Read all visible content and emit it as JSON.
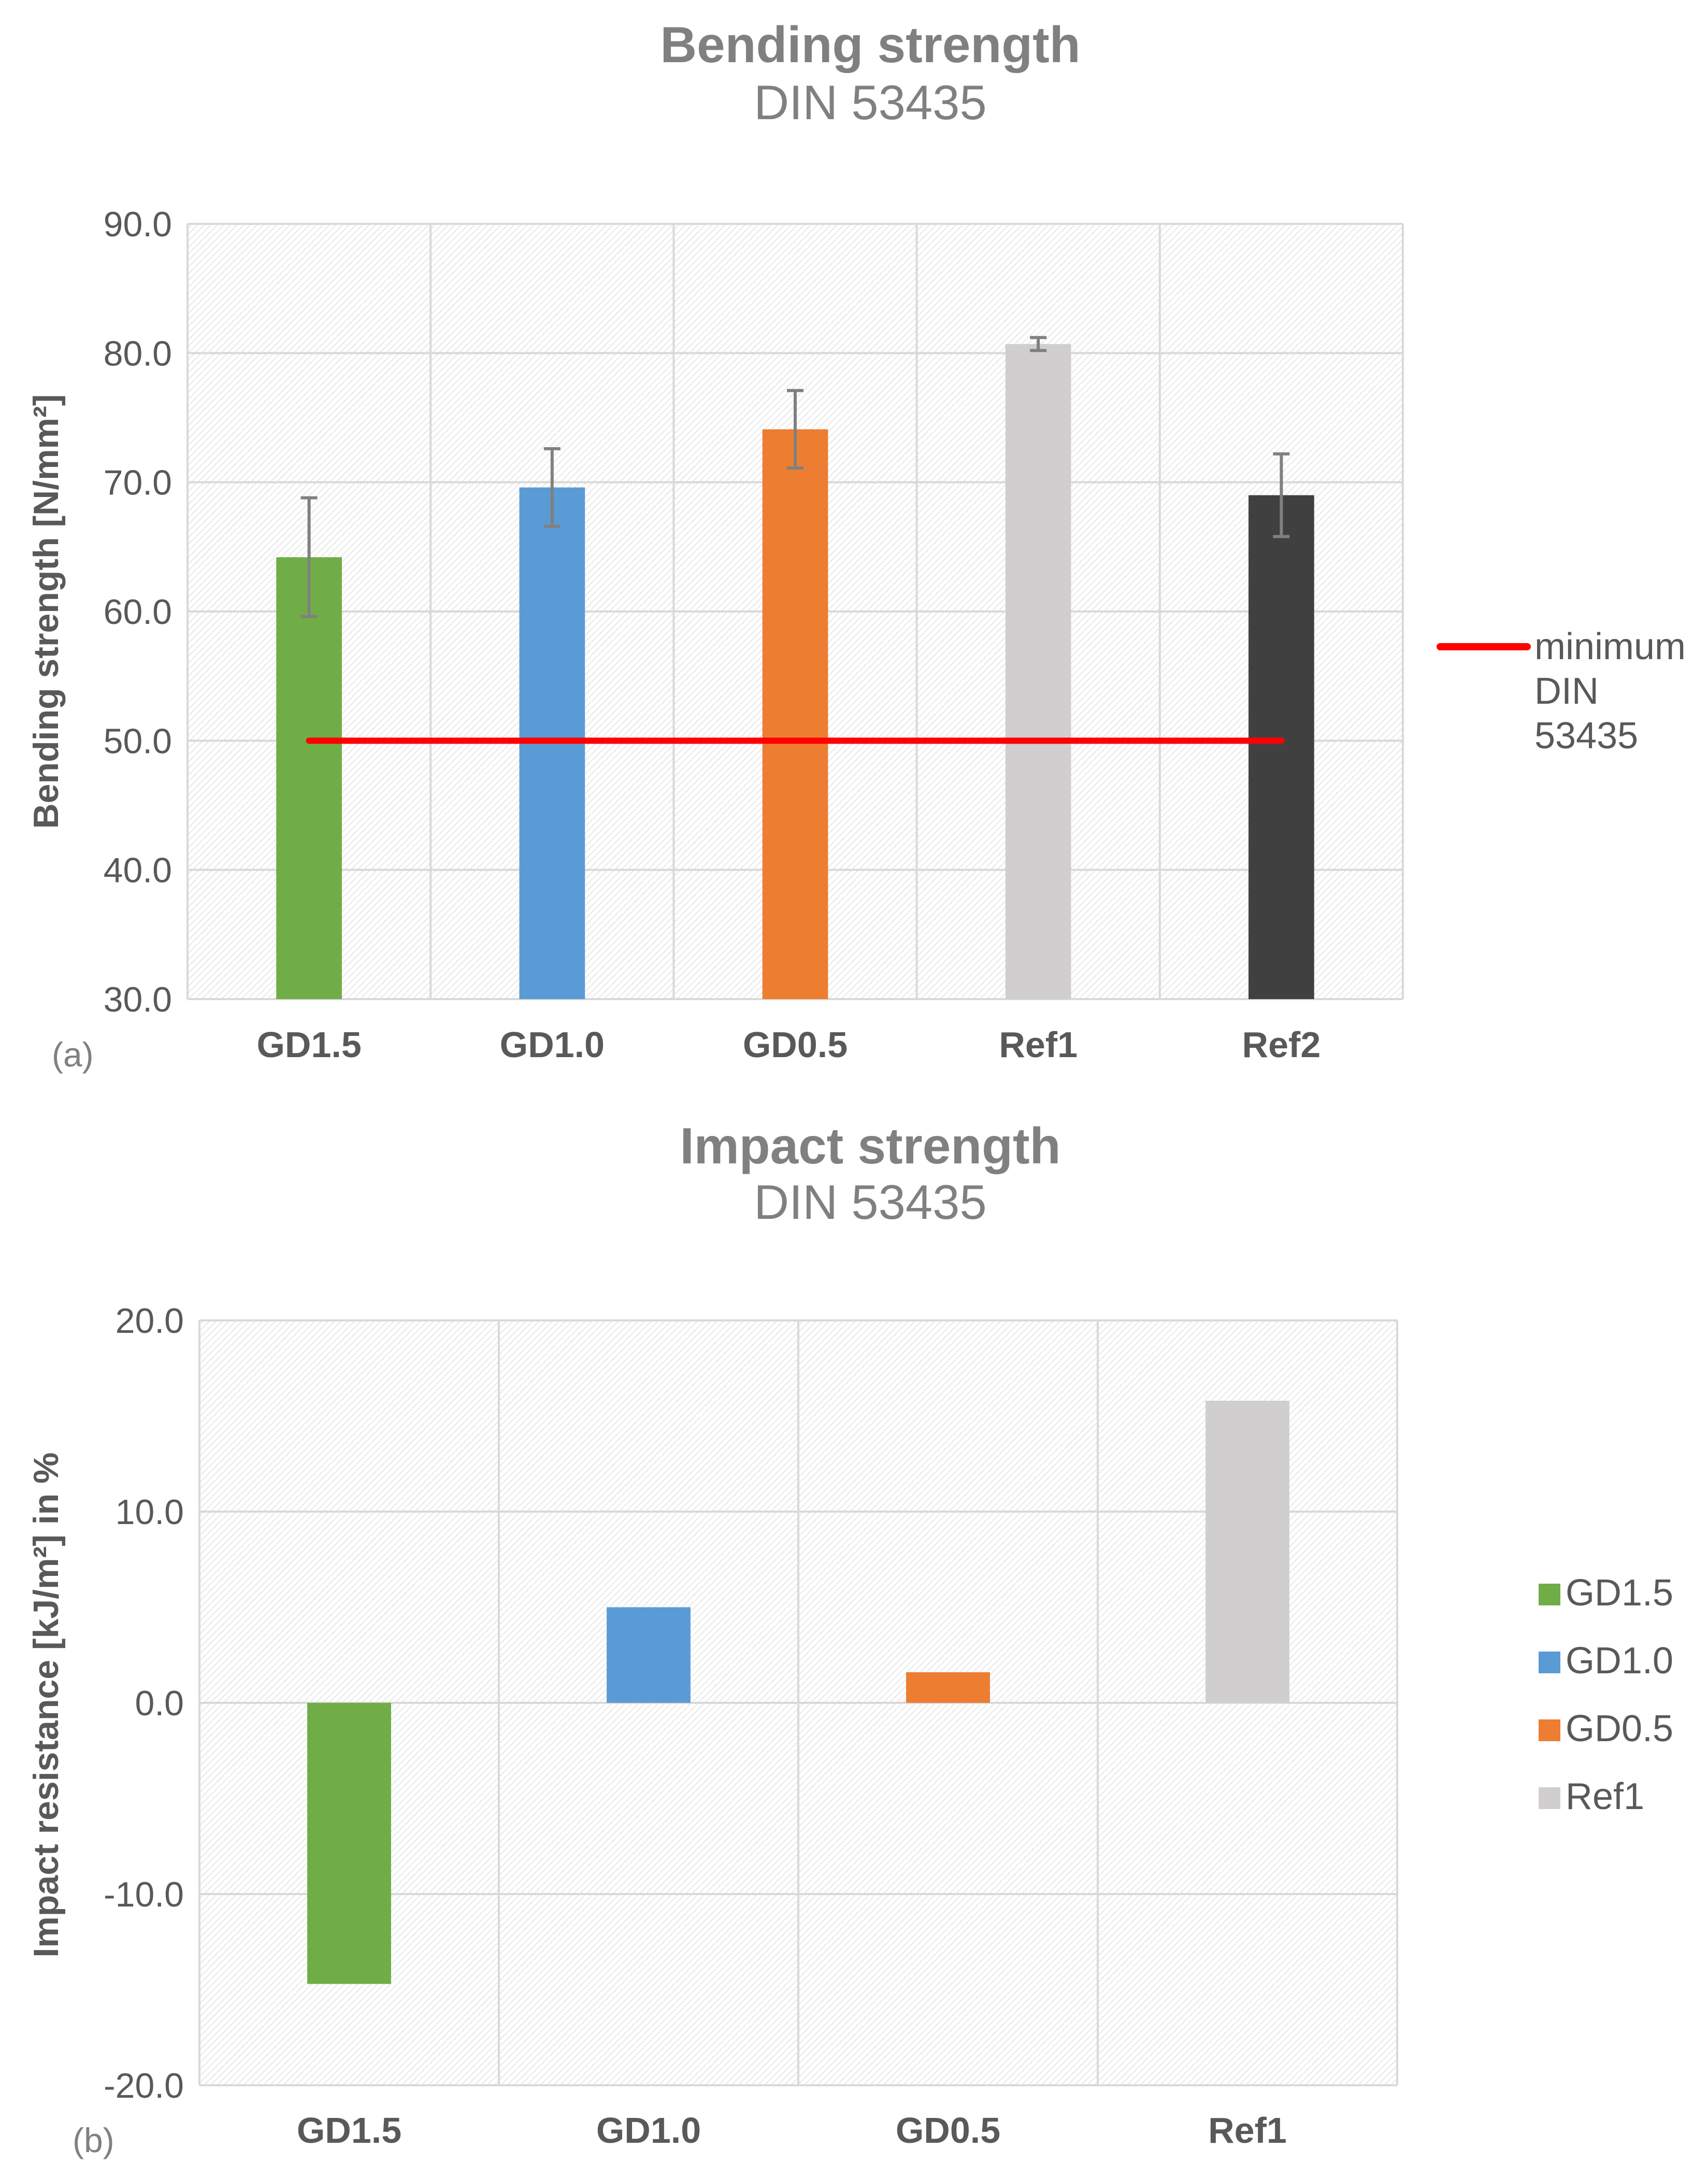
{
  "chart_data": [
    {
      "type": "bar",
      "panel_label": "(a)",
      "title": "Bending strength",
      "subtitle": "DIN 53435",
      "xlabel": "",
      "ylabel": "Bending strength [N/mm²]",
      "ylim": [
        30,
        90
      ],
      "yticks": [
        "30.0",
        "40.0",
        "50.0",
        "60.0",
        "70.0",
        "80.0",
        "90.0"
      ],
      "grid": true,
      "categories": [
        "GD1.5",
        "GD1.0",
        "GD0.5",
        "Ref1",
        "Ref2"
      ],
      "values": [
        64.2,
        69.6,
        74.1,
        80.7,
        69.0
      ],
      "errors": [
        4.6,
        3.0,
        3.0,
        0.5,
        3.2
      ],
      "colors": [
        "#70ad47",
        "#5b9bd5",
        "#ed7d31",
        "#d0cece",
        "#404040"
      ],
      "reference_line": {
        "value": 50.0,
        "label": "minimum DIN 53435",
        "label_lines": [
          "minimum",
          "DIN",
          "53435"
        ],
        "color": "#ff0000"
      },
      "legend_position": "right"
    },
    {
      "type": "bar",
      "panel_label": "(b)",
      "title": "Impact strength",
      "subtitle": "DIN 53435",
      "xlabel": "",
      "ylabel": "Impact resistance [kJ/m²] in %",
      "ylim": [
        -20,
        20
      ],
      "yticks": [
        "-20.0",
        "-10.0",
        "0.0",
        "10.0",
        "20.0"
      ],
      "grid": true,
      "categories": [
        "GD1.5",
        "GD1.0",
        "GD0.5",
        "Ref1"
      ],
      "values": [
        -14.7,
        5.0,
        1.6,
        15.8
      ],
      "colors": [
        "#70ad47",
        "#5b9bd5",
        "#ed7d31",
        "#d0cece"
      ],
      "legend": [
        "GD1.5",
        "GD1.0",
        "GD0.5",
        "Ref1"
      ],
      "legend_position": "right"
    }
  ]
}
